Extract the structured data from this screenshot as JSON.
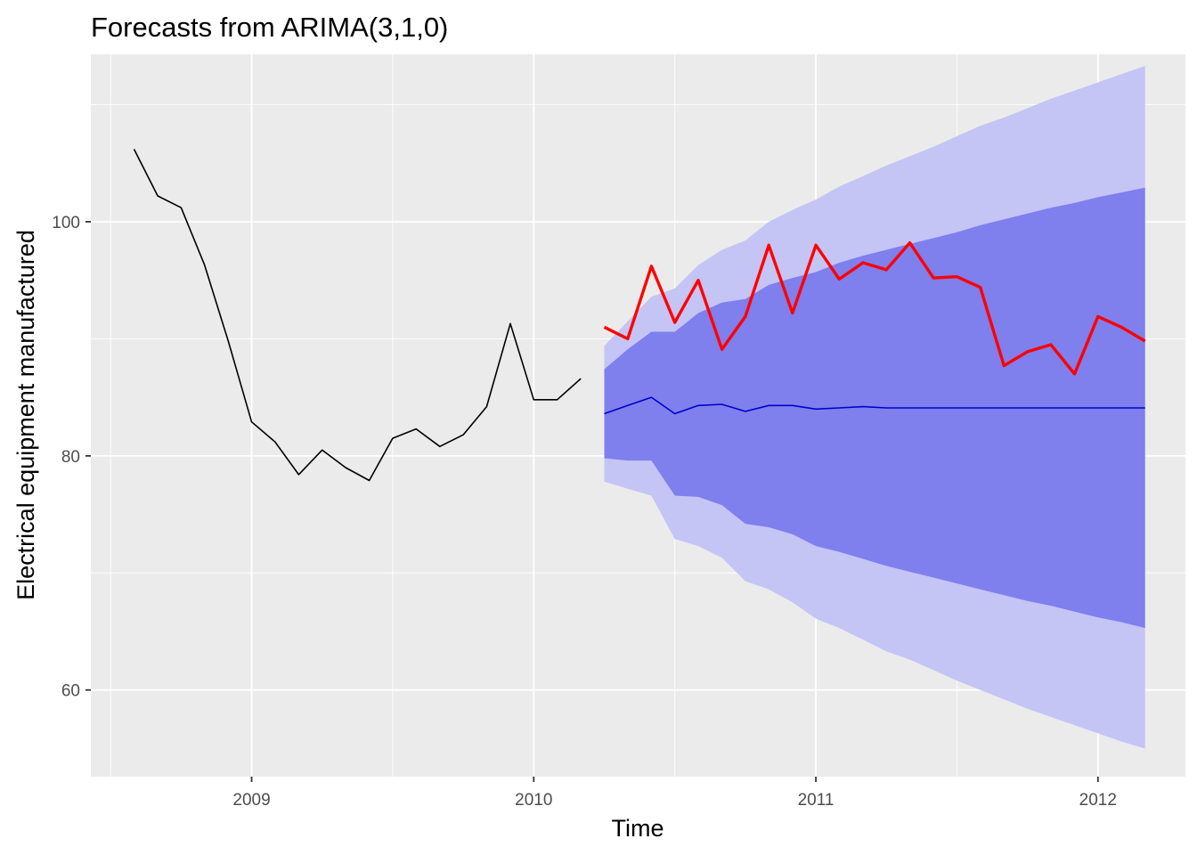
{
  "chart_data": {
    "type": "line",
    "title": "Forecasts from ARIMA(3,1,0)",
    "xlabel": "Time",
    "ylabel": "Electrical equipment manufactured",
    "xlim": [
      2008.43,
      2012.31
    ],
    "ylim": [
      52.6,
      114.3
    ],
    "x_ticks": [
      2009,
      2010,
      2011,
      2012
    ],
    "x_tick_labels": [
      "2009",
      "2010",
      "2011",
      "2012"
    ],
    "y_ticks": [
      60,
      80,
      100
    ],
    "y_tick_labels": [
      "60",
      "80",
      "100"
    ],
    "grid": true,
    "colors": {
      "panel": "#ebebeb",
      "grid": "#ffffff",
      "history": "#000000",
      "forecast_mean": "#0000cc",
      "pi80": "#7f7fed",
      "pi95": "#c4c4f5",
      "actual": "#ff0000"
    },
    "history": {
      "x": [
        2008.583,
        2008.667,
        2008.75,
        2008.833,
        2008.917,
        2009.0,
        2009.083,
        2009.167,
        2009.25,
        2009.333,
        2009.417,
        2009.5,
        2009.583,
        2009.667,
        2009.75,
        2009.833,
        2009.917,
        2010.0,
        2010.083,
        2010.167
      ],
      "y": [
        106.2,
        102.2,
        101.2,
        96.3,
        89.8,
        82.9,
        81.2,
        78.4,
        80.5,
        79.0,
        77.9,
        81.5,
        82.3,
        80.8,
        81.8,
        84.2,
        91.3,
        84.8,
        84.8,
        86.6
      ]
    },
    "forecast": {
      "x": [
        2010.25,
        2010.333,
        2010.417,
        2010.5,
        2010.583,
        2010.667,
        2010.75,
        2010.833,
        2010.917,
        2011.0,
        2011.083,
        2011.167,
        2011.25,
        2011.333,
        2011.417,
        2011.5,
        2011.583,
        2011.667,
        2011.75,
        2011.833,
        2011.917,
        2012.0,
        2012.083,
        2012.167
      ],
      "mean": [
        83.6,
        84.3,
        85.0,
        83.6,
        84.3,
        84.4,
        83.8,
        84.3,
        84.3,
        84.0,
        84.1,
        84.2,
        84.1,
        84.1,
        84.1,
        84.1,
        84.1,
        84.1,
        84.1,
        84.1,
        84.1,
        84.1,
        84.1,
        84.1
      ],
      "lo80": [
        79.8,
        79.6,
        79.6,
        76.6,
        76.5,
        75.8,
        74.2,
        73.9,
        73.3,
        72.3,
        71.8,
        71.2,
        70.6,
        70.1,
        69.6,
        69.1,
        68.6,
        68.1,
        67.6,
        67.2,
        66.7,
        66.2,
        65.8,
        65.3
      ],
      "hi80": [
        87.4,
        89.1,
        90.6,
        90.6,
        92.2,
        93.1,
        93.4,
        94.6,
        95.2,
        95.7,
        96.5,
        97.1,
        97.6,
        98.1,
        98.6,
        99.1,
        99.7,
        100.2,
        100.7,
        101.2,
        101.6,
        102.1,
        102.5,
        102.9
      ],
      "lo95": [
        77.8,
        77.2,
        76.6,
        72.9,
        72.3,
        71.3,
        69.3,
        68.6,
        67.5,
        66.1,
        65.3,
        64.3,
        63.3,
        62.6,
        61.7,
        60.8,
        60.0,
        59.2,
        58.4,
        57.7,
        57.0,
        56.3,
        55.6,
        55.0
      ],
      "hi95": [
        89.4,
        91.5,
        93.6,
        94.3,
        96.3,
        97.6,
        98.4,
        100.0,
        101.0,
        101.9,
        103.0,
        103.9,
        104.8,
        105.6,
        106.4,
        107.3,
        108.2,
        108.9,
        109.7,
        110.5,
        111.2,
        111.9,
        112.6,
        113.3
      ]
    },
    "actual": {
      "x": [
        2010.25,
        2010.333,
        2010.417,
        2010.5,
        2010.583,
        2010.667,
        2010.75,
        2010.833,
        2010.917,
        2011.0,
        2011.083,
        2011.167,
        2011.25,
        2011.333,
        2011.417,
        2011.5,
        2011.583,
        2011.667,
        2011.75,
        2011.833,
        2011.917,
        2012.0,
        2012.083,
        2012.167
      ],
      "y": [
        91.0,
        90.0,
        96.2,
        91.4,
        95.0,
        89.1,
        91.9,
        98.0,
        92.2,
        98.0,
        95.1,
        96.5,
        95.9,
        98.2,
        95.2,
        95.3,
        94.4,
        87.7,
        88.9,
        89.5,
        87.0,
        91.9,
        91.0,
        89.8
      ]
    }
  }
}
